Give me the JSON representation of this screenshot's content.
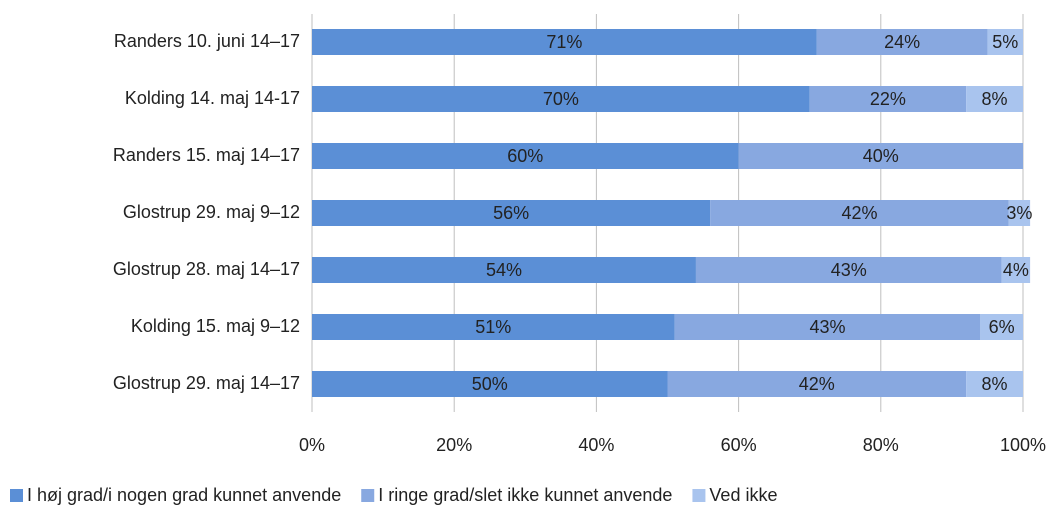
{
  "chart_data": {
    "type": "stacked-bar",
    "orientation": "horizontal",
    "categories": [
      "Randers 10. juni 14–17",
      "Kolding 14. maj 14-17",
      "Randers 15. maj 14–17",
      "Glostrup 29. maj 9–12",
      "Glostrup 28. maj 14–17",
      "Kolding 15. maj 9–12",
      "Glostrup 29. maj 14–17"
    ],
    "series": [
      {
        "name": "I høj grad/i nogen grad kunnet anvende",
        "color": "#5b8fd6",
        "values": [
          71,
          70,
          60,
          56,
          54,
          51,
          50
        ],
        "value_labels": [
          "71%",
          "70%",
          "60%",
          "56%",
          "54%",
          "51%",
          "50%"
        ]
      },
      {
        "name": "I ringe grad/slet ikke kunnet anvende",
        "color": "#88a8e0",
        "values": [
          24,
          22,
          40,
          42,
          43,
          43,
          42
        ],
        "value_labels": [
          "24%",
          "22%",
          "40%",
          "42%",
          "43%",
          "43%",
          "42%"
        ]
      },
      {
        "name": "Ved ikke",
        "color": "#a9c4ee",
        "values": [
          5,
          8,
          null,
          3,
          4,
          6,
          8
        ],
        "value_labels": [
          "5%",
          "8%",
          null,
          "3%",
          "4%",
          "6%",
          "8%"
        ]
      }
    ],
    "xlim": [
      0,
      100
    ],
    "xticks": [
      {
        "value": 0,
        "label": "0%"
      },
      {
        "value": 20,
        "label": "20%"
      },
      {
        "value": 40,
        "label": "40%"
      },
      {
        "value": 60,
        "label": "60%"
      },
      {
        "value": 80,
        "label": "80%"
      },
      {
        "value": 100,
        "label": "100%"
      }
    ],
    "grid": true,
    "legend": "bottom"
  }
}
